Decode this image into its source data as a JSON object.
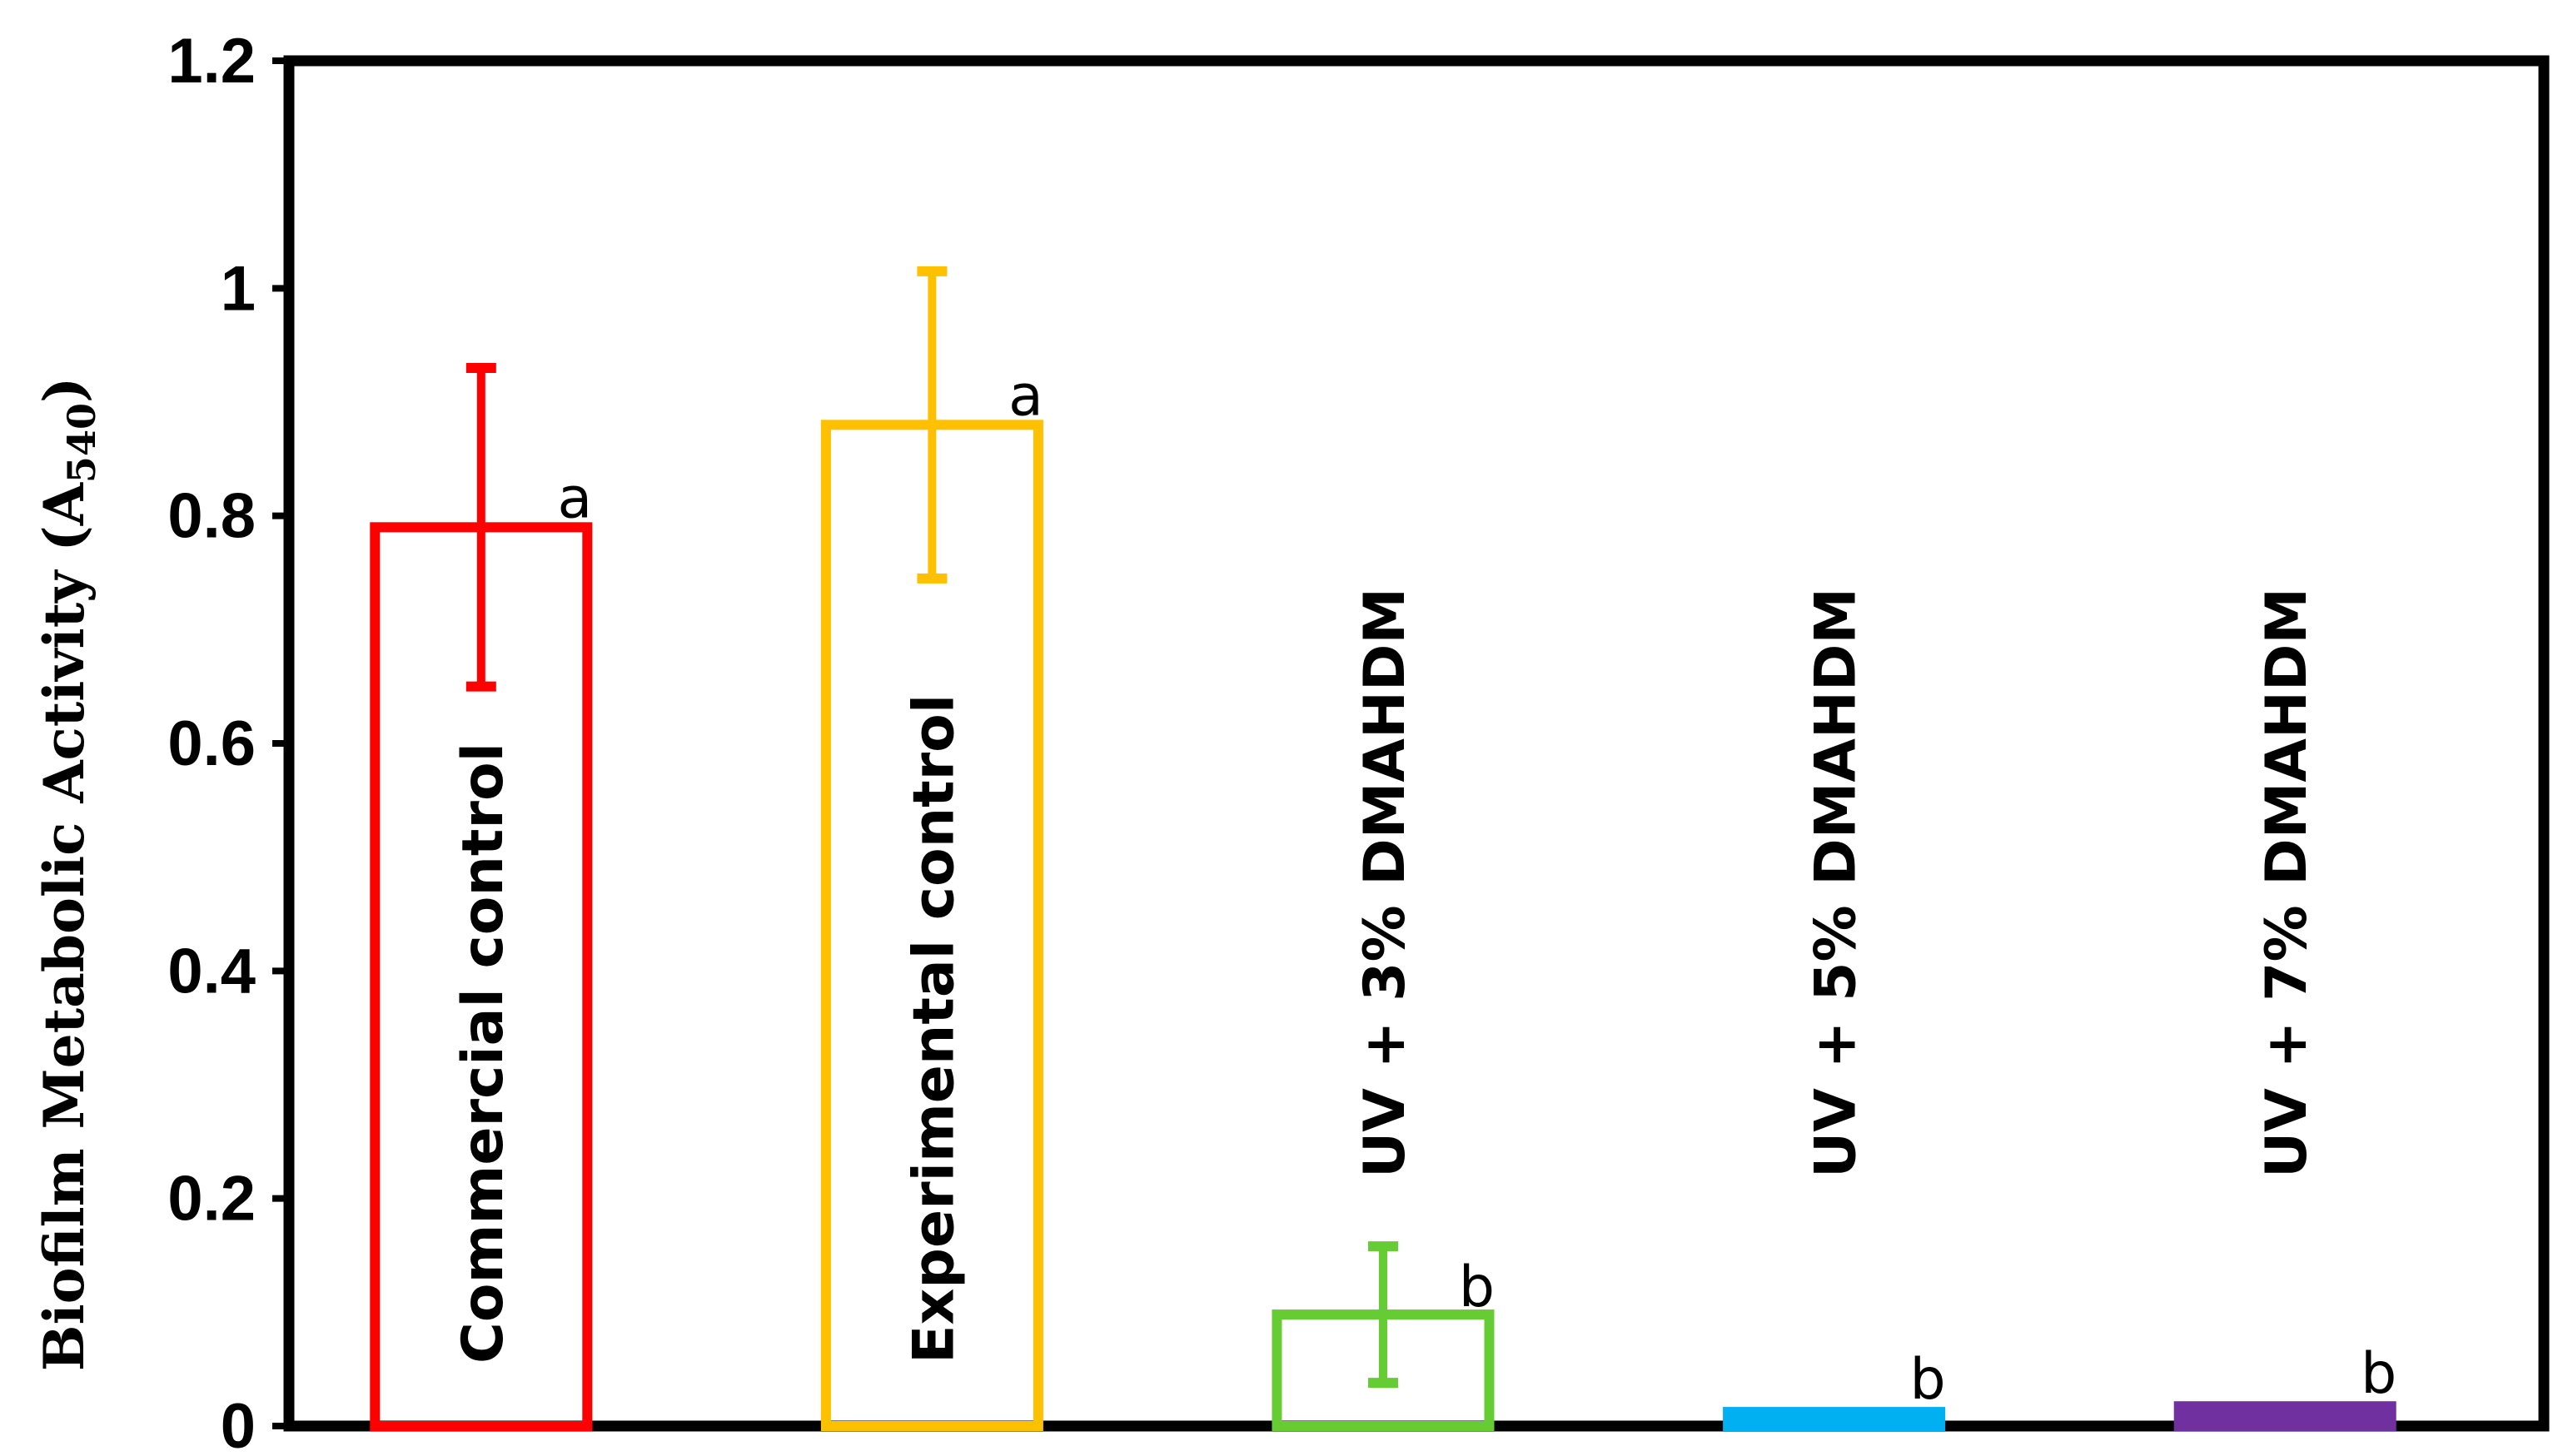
{
  "chart_data": {
    "type": "bar",
    "title": "",
    "xlabel": "",
    "ylabel": "Biofilm Metabolic Activity (A",
    "ylabel_subscript": "540",
    "ylabel_suffix": ")",
    "ylim": [
      0,
      1.2
    ],
    "yticks": [
      0,
      0.2,
      0.4,
      0.6,
      0.8,
      1,
      1.2
    ],
    "ytick_labels": [
      "0",
      "0.2",
      "0.4",
      "0.6",
      "0.8",
      "1",
      "1.2"
    ],
    "grid": false,
    "legend": "none",
    "categories": [
      "Commercial control",
      "Experimental control",
      "UV + 3% DMAHDM",
      "UV + 5% DMAHDM",
      "UV + 7% DMAHDM"
    ],
    "values": [
      0.79,
      0.88,
      0.098,
      0.008,
      0.013
    ],
    "errors": [
      0.14,
      0.135,
      0.06,
      0.002,
      0.004
    ],
    "significance": [
      "a",
      "a",
      "b",
      "b",
      "b"
    ],
    "colors": [
      "#ff0000",
      "#ffc000",
      "#66cc33",
      "#00b0f0",
      "#7030a0"
    ]
  }
}
